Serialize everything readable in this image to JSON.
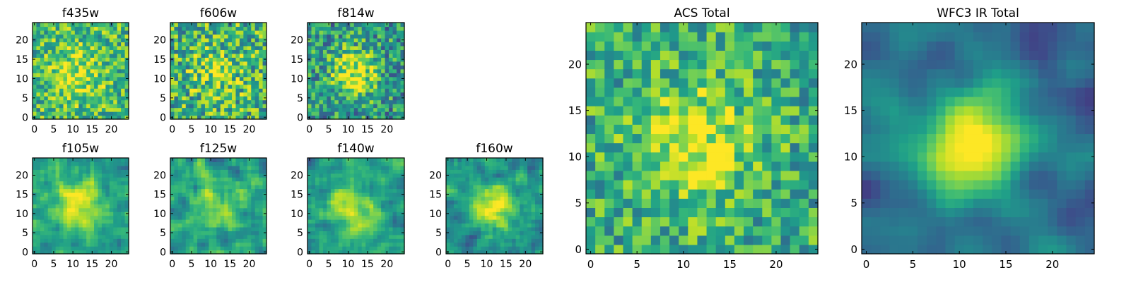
{
  "chart_data": [
    {
      "type": "heatmap",
      "title": "f435w",
      "xticks": [
        0,
        5,
        10,
        15,
        20
      ],
      "yticks": [
        0,
        5,
        10,
        15,
        20
      ],
      "xlim": [
        0,
        24
      ],
      "ylim": [
        0,
        24
      ],
      "grid": false,
      "legend": "none",
      "colormap": "viridis"
    },
    {
      "type": "heatmap",
      "title": "f606w",
      "xticks": [
        0,
        5,
        10,
        15,
        20
      ],
      "yticks": [
        0,
        5,
        10,
        15,
        20
      ],
      "xlim": [
        0,
        24
      ],
      "ylim": [
        0,
        24
      ],
      "grid": false,
      "legend": "none",
      "colormap": "viridis"
    },
    {
      "type": "heatmap",
      "title": "f814w",
      "xticks": [
        0,
        5,
        10,
        15,
        20
      ],
      "yticks": [
        0,
        5,
        10,
        15,
        20
      ],
      "xlim": [
        0,
        24
      ],
      "ylim": [
        0,
        24
      ],
      "grid": false,
      "legend": "none",
      "colormap": "viridis"
    },
    {
      "type": "heatmap",
      "title": "f105w",
      "xticks": [
        0,
        5,
        10,
        15,
        20
      ],
      "yticks": [
        0,
        5,
        10,
        15,
        20
      ],
      "xlim": [
        0,
        24
      ],
      "ylim": [
        0,
        24
      ],
      "grid": false,
      "legend": "none",
      "colormap": "viridis"
    },
    {
      "type": "heatmap",
      "title": "f125w",
      "xticks": [
        0,
        5,
        10,
        15,
        20
      ],
      "yticks": [
        0,
        5,
        10,
        15,
        20
      ],
      "xlim": [
        0,
        24
      ],
      "ylim": [
        0,
        24
      ],
      "grid": false,
      "legend": "none",
      "colormap": "viridis"
    },
    {
      "type": "heatmap",
      "title": "f140w",
      "xticks": [
        0,
        5,
        10,
        15,
        20
      ],
      "yticks": [
        0,
        5,
        10,
        15,
        20
      ],
      "xlim": [
        0,
        24
      ],
      "ylim": [
        0,
        24
      ],
      "grid": false,
      "legend": "none",
      "colormap": "viridis"
    },
    {
      "type": "heatmap",
      "title": "f160w",
      "xticks": [
        0,
        5,
        10,
        15,
        20
      ],
      "yticks": [
        0,
        5,
        10,
        15,
        20
      ],
      "xlim": [
        0,
        24
      ],
      "ylim": [
        0,
        24
      ],
      "grid": false,
      "legend": "none",
      "colormap": "viridis"
    },
    {
      "type": "heatmap",
      "title": "ACS Total",
      "xticks": [
        0,
        5,
        10,
        15,
        20
      ],
      "yticks": [
        0,
        5,
        10,
        15,
        20
      ],
      "xlim": [
        0,
        24
      ],
      "ylim": [
        0,
        24
      ],
      "grid": false,
      "legend": "none",
      "colormap": "viridis"
    },
    {
      "type": "heatmap",
      "title": "WFC3 IR Total",
      "xticks": [
        0,
        5,
        10,
        15,
        20
      ],
      "yticks": [
        0,
        5,
        10,
        15,
        20
      ],
      "xlim": [
        0,
        24
      ],
      "ylim": [
        0,
        24
      ],
      "grid": false,
      "legend": "none",
      "colormap": "viridis"
    }
  ]
}
